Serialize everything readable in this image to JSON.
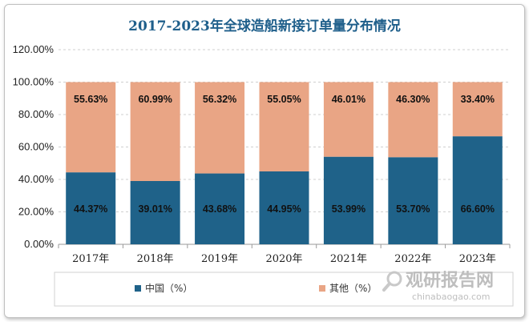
{
  "chart_data": {
    "type": "bar",
    "stacked": true,
    "title": "2017-2023年全球造船新接订单量分布情况",
    "categories": [
      "2017年",
      "2018年",
      "2019年",
      "2020年",
      "2021年",
      "2022年",
      "2023年"
    ],
    "series": [
      {
        "name": "中国（%）",
        "color": "#1f6289",
        "values": [
          44.37,
          39.01,
          43.68,
          44.95,
          53.99,
          53.7,
          66.6
        ],
        "labels": [
          "44.37%",
          "39.01%",
          "43.68%",
          "44.95%",
          "53.99%",
          "53.70%",
          "66.60%"
        ]
      },
      {
        "name": "其他（%）",
        "color": "#e9a585",
        "values": [
          55.63,
          60.99,
          56.32,
          55.05,
          46.01,
          46.3,
          33.4
        ],
        "labels": [
          "55.63%",
          "60.99%",
          "56.32%",
          "55.05%",
          "46.01%",
          "46.30%",
          "33.40%"
        ]
      }
    ],
    "ylim": [
      0,
      120
    ],
    "yticks": [
      0,
      20,
      40,
      60,
      80,
      100,
      120
    ],
    "ytick_labels": [
      "0.00%",
      "20.00%",
      "40.00%",
      "60.00%",
      "80.00%",
      "100.00%",
      "120.00%"
    ],
    "grid": "dashed horizontal",
    "legend": "bottom"
  },
  "watermark": {
    "brand": "观研报告网",
    "url": "chinabaogao.com",
    "icon": "magnifier-logo-icon"
  }
}
